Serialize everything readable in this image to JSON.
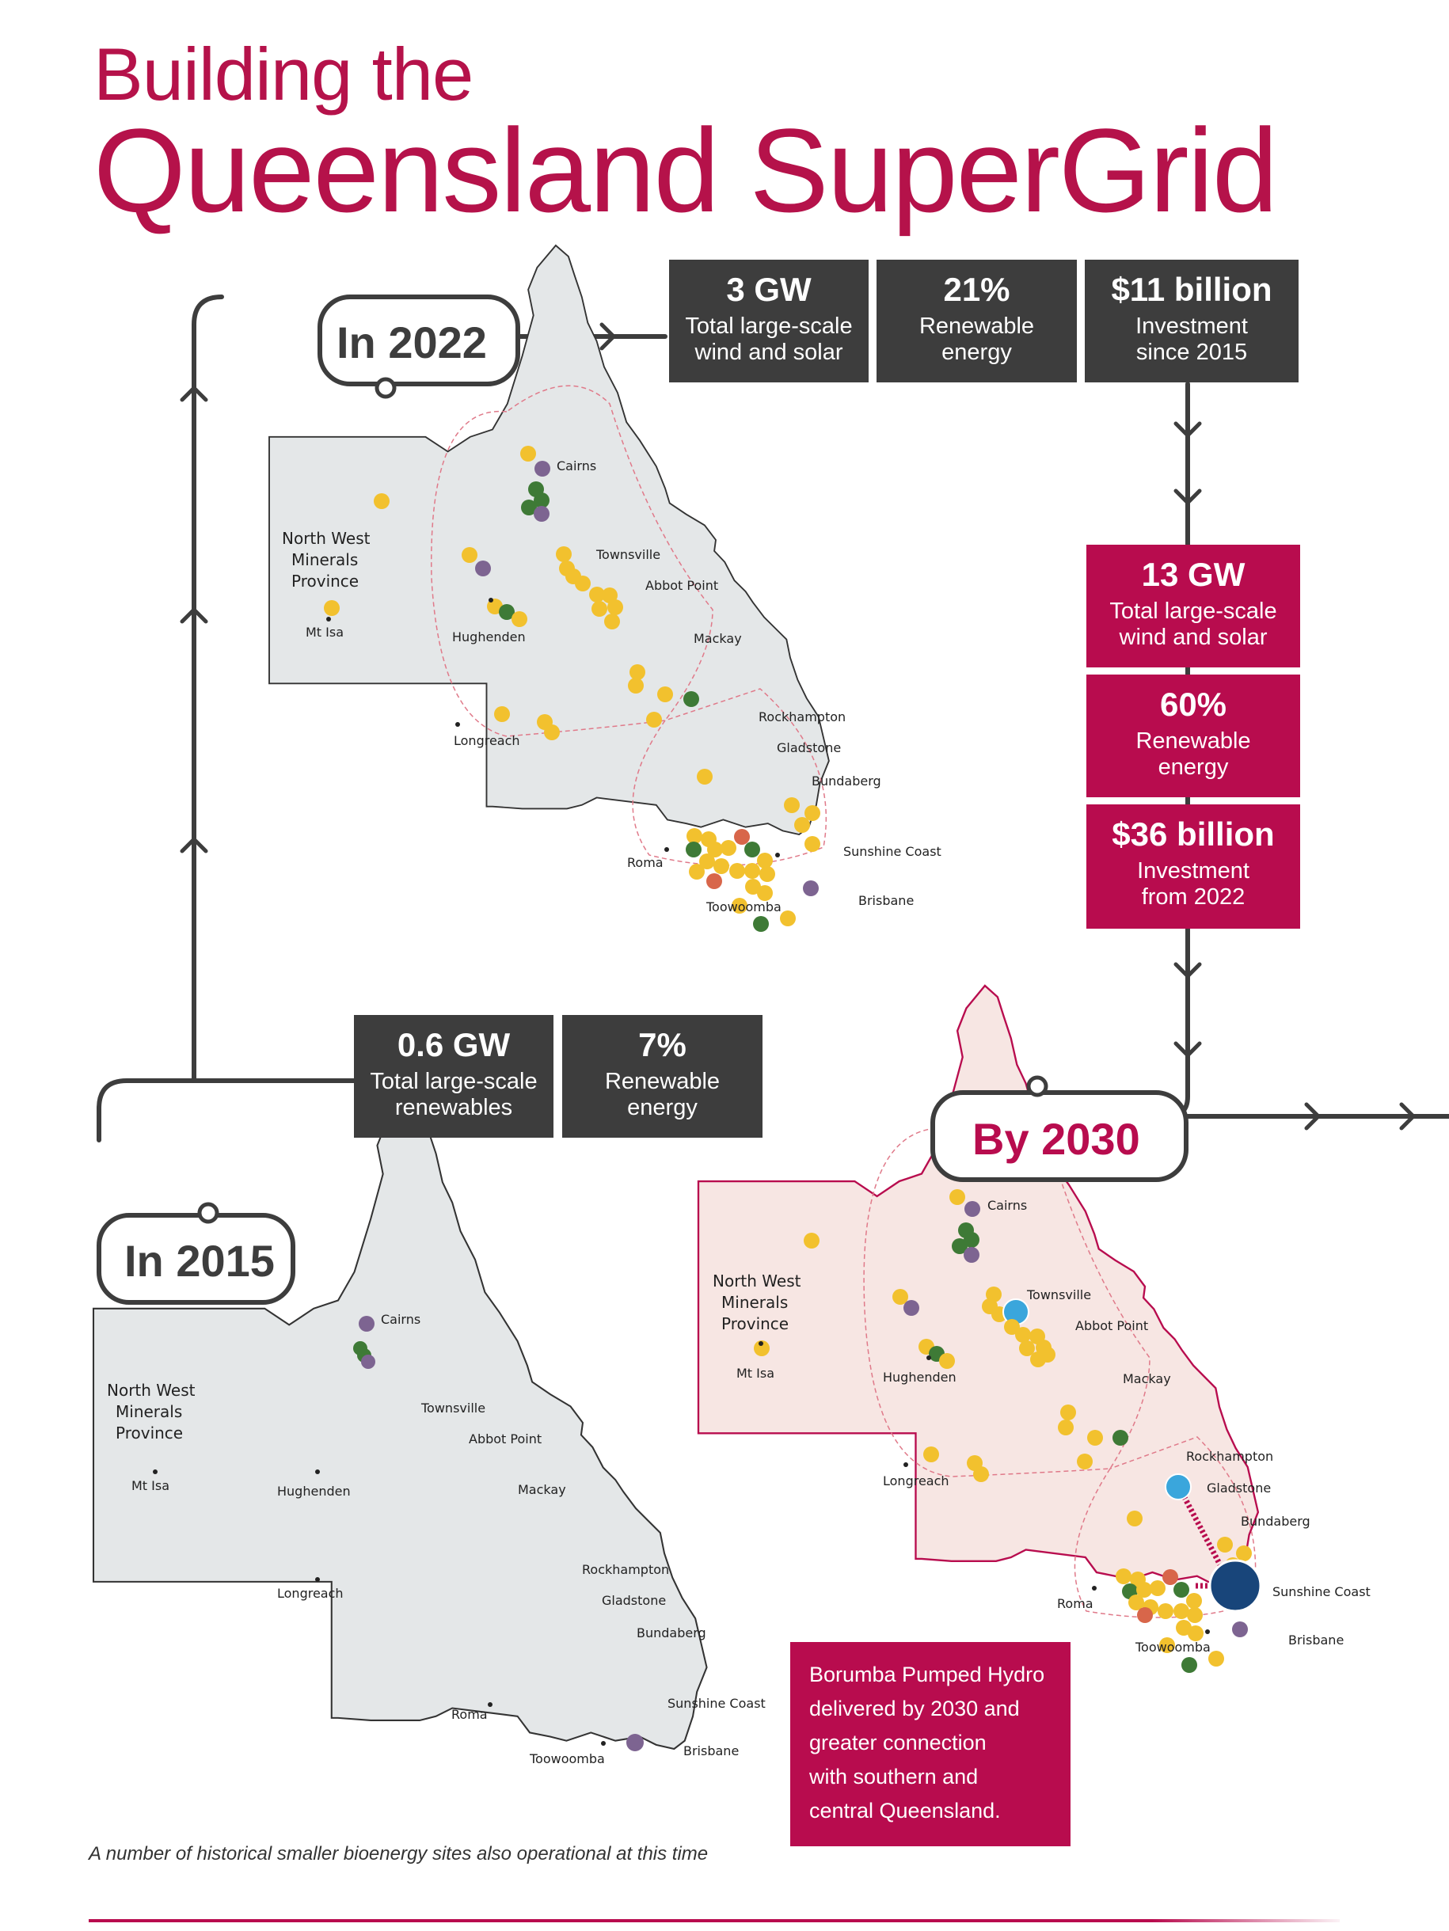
{
  "title": {
    "line1": "Building the",
    "line2": "Queensland SuperGrid"
  },
  "colors": {
    "accent": "#b5124a",
    "dark_box": "#3d3d3d",
    "magenta_box": "#b80c4e",
    "map_grey": "#e4e7e8",
    "map_pink": "#f7e6e3",
    "solar": "#f2c12e",
    "wind": "#3e7a36",
    "bioenergy": "#7d6491",
    "other": "#d8664a",
    "pumped_hydro_small": "#3aa6dc",
    "pumped_hydro_large": "#18457a"
  },
  "years": {
    "y2015": "In 2015",
    "y2022": "In 2022",
    "y2030": "By 2030"
  },
  "stats_2015": [
    {
      "value": "0.6 GW",
      "label_lines": [
        "Total large-scale",
        "renewables"
      ]
    },
    {
      "value": "7%",
      "label_lines": [
        "Renewable",
        "energy"
      ]
    }
  ],
  "stats_2022": [
    {
      "value": "3 GW",
      "label_lines": [
        "Total large-scale",
        "wind and solar"
      ]
    },
    {
      "value": "21%",
      "label_lines": [
        "Renewable",
        "energy"
      ]
    },
    {
      "value": "$11 billion",
      "label_lines": [
        "Investment",
        "since 2015"
      ]
    }
  ],
  "stats_2030": [
    {
      "value": "13 GW",
      "label_lines": [
        "Total large-scale",
        "wind and solar"
      ]
    },
    {
      "value": "60%",
      "label_lines": [
        "Renewable",
        "energy"
      ]
    },
    {
      "value": "$36 billion",
      "label_lines": [
        "Investment",
        "from 2022"
      ]
    }
  ],
  "places": {
    "nwmp": [
      "North West",
      "Minerals",
      "Province"
    ],
    "mt_isa": "Mt Isa",
    "cairns": "Cairns",
    "townsville": "Townsville",
    "abbot_point": "Abbot Point",
    "hughenden": "Hughenden",
    "mackay": "Mackay",
    "longreach": "Longreach",
    "rockhampton": "Rockhampton",
    "gladstone": "Gladstone",
    "bundaberg": "Bundaberg",
    "sunshine_coast": "Sunshine Coast",
    "roma": "Roma",
    "toowoomba": "Toowoomba",
    "brisbane": "Brisbane",
    "brisbane_2015": "Brisbane"
  },
  "callout": [
    "Borumba Pumped Hydro",
    "delivered by 2030 and",
    "greater connection",
    "with southern and",
    "central Queensland."
  ],
  "footnote": "A number of historical smaller bioenergy sites also operational at this time"
}
